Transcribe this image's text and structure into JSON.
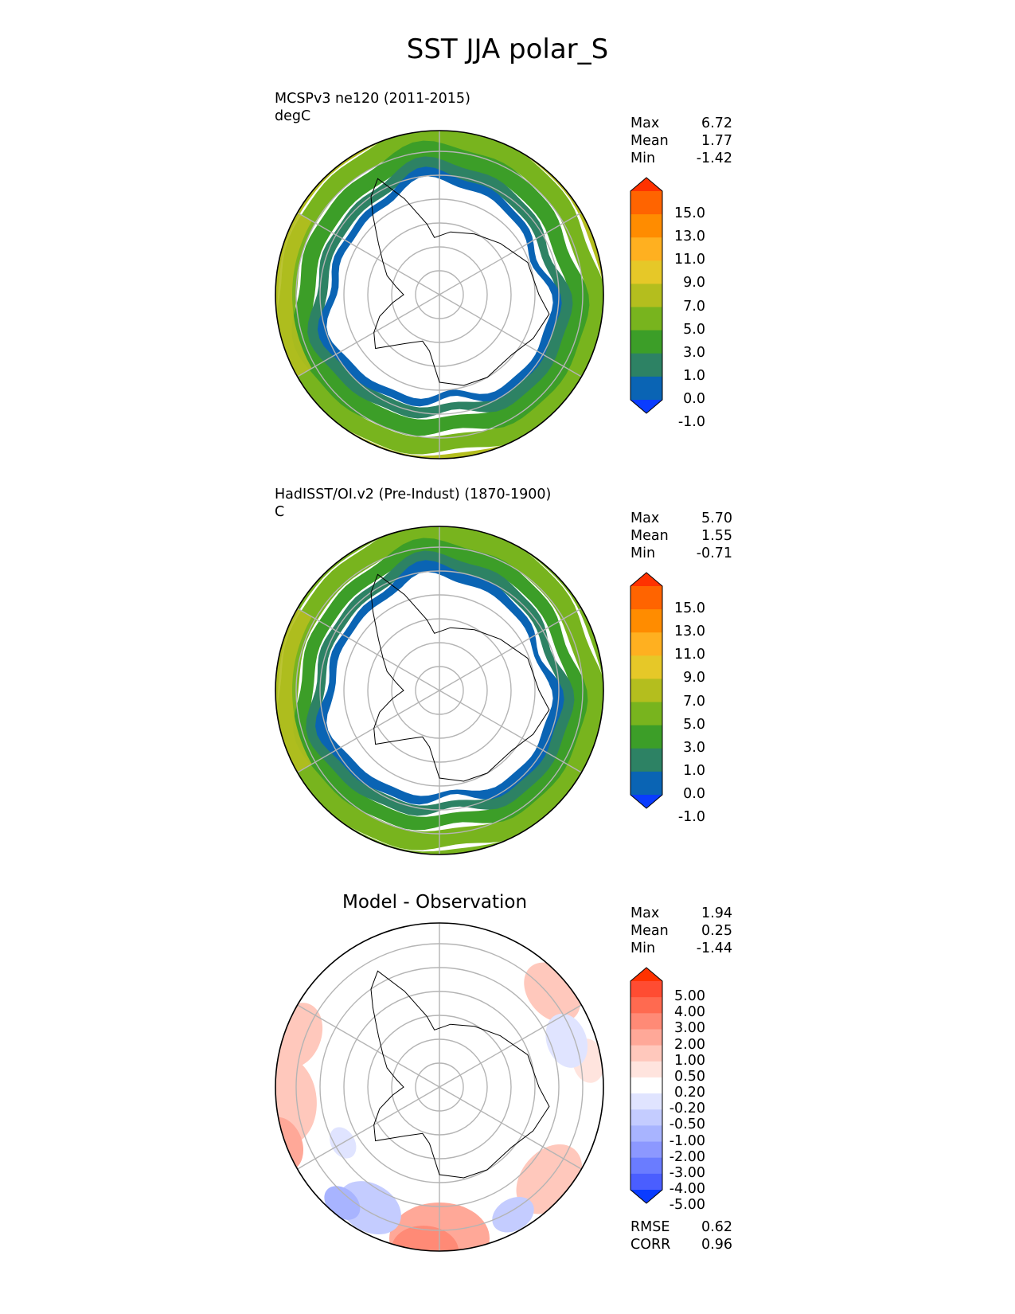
{
  "title": "SST JJA polar_S",
  "panels": [
    {
      "id": "model",
      "label_line1": "MCSPv3 ne120 (2011-2015)",
      "label_line2": "degC",
      "stats": [
        [
          "Max",
          "6.72"
        ],
        [
          "Mean",
          "1.77"
        ],
        [
          "Min",
          "-1.42"
        ]
      ],
      "colorbar": {
        "ticks": [
          "15.0",
          "13.0",
          "11.0",
          "9.0",
          "7.0",
          "5.0",
          "3.0",
          "1.0",
          "0.0",
          "-1.0"
        ],
        "colors": [
          "#ff3200",
          "#ff6400",
          "#ff8c00",
          "#ffb020",
          "#e6c828",
          "#b4be1e",
          "#78b41e",
          "#3c9e28",
          "#2d8264",
          "#0a64b4",
          "#0a3cff"
        ]
      }
    },
    {
      "id": "obs",
      "label_line1": "HadISST/OI.v2 (Pre-Indust) (1870-1900)",
      "label_line2": "C",
      "stats": [
        [
          "Max",
          "5.70"
        ],
        [
          "Mean",
          "1.55"
        ],
        [
          "Min",
          "-0.71"
        ]
      ],
      "colorbar": {
        "ticks": [
          "15.0",
          "13.0",
          "11.0",
          "9.0",
          "7.0",
          "5.0",
          "3.0",
          "1.0",
          "0.0",
          "-1.0"
        ],
        "colors": [
          "#ff3200",
          "#ff6400",
          "#ff8c00",
          "#ffb020",
          "#e6c828",
          "#b4be1e",
          "#78b41e",
          "#3c9e28",
          "#2d8264",
          "#0a64b4",
          "#0a3cff"
        ]
      }
    },
    {
      "id": "diff",
      "title": "Model - Observation",
      "stats": [
        [
          "Max",
          "1.94"
        ],
        [
          "Mean",
          "0.25"
        ],
        [
          "Min",
          "-1.44"
        ]
      ],
      "colorbar": {
        "ticks": [
          "5.00",
          "4.00",
          "3.00",
          "2.00",
          "1.00",
          "0.50",
          "0.20",
          "-0.20",
          "-0.50",
          "-1.00",
          "-2.00",
          "-3.00",
          "-4.00",
          "-5.00"
        ],
        "colors": [
          "#ff3200",
          "#ff4c32",
          "#ff6a50",
          "#ff8a76",
          "#ffa898",
          "#ffc8bc",
          "#ffe4de",
          "#ffffff",
          "#e0e4ff",
          "#c4ccff",
          "#a8b4ff",
          "#8c98ff",
          "#6a7cff",
          "#4a5eff",
          "#0a3cff"
        ]
      },
      "metrics": [
        [
          "RMSE",
          "0.62"
        ],
        [
          "CORR",
          "0.96"
        ]
      ]
    }
  ]
}
